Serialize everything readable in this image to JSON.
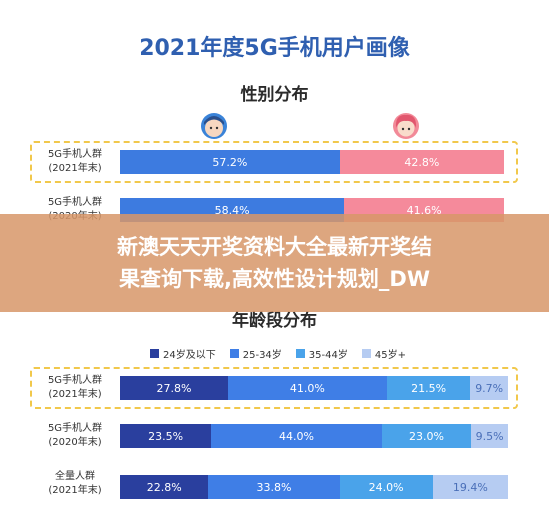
{
  "title": "2021年度5G手机用户画像",
  "banner": {
    "line1": "新澳天天开奖资料大全最新开奖结",
    "line2": "果查询下载,高效性设计规划_DW"
  },
  "gender_section": {
    "title": "性别分布",
    "rows": [
      {
        "label_line1": "5G手机人群",
        "label_line2": "(2021年末)",
        "male_label": "57.2%",
        "female_label": "42.8%"
      },
      {
        "label_line1": "5G手机人群",
        "label_line2": "(2020年末)",
        "male_label": "58.4%",
        "female_label": "41.6%"
      }
    ]
  },
  "age_section": {
    "title": "年龄段分布",
    "legend": [
      "24岁及以下",
      "25-34岁",
      "35-44岁",
      "45岁+"
    ],
    "rows": [
      {
        "label_line1": "5G手机人群",
        "label_line2": "(2021年末)",
        "labels": [
          "27.8%",
          "41.0%",
          "21.5%",
          "9.7%"
        ]
      },
      {
        "label_line1": "5G手机人群",
        "label_line2": "(2020年末)",
        "labels": [
          "23.5%",
          "44.0%",
          "23.0%",
          "9.5%"
        ]
      },
      {
        "label_line1": "全量人群",
        "label_line2": "(2021年末)",
        "labels": [
          "22.8%",
          "33.8%",
          "24.0%",
          "19.4%"
        ]
      }
    ]
  },
  "colors": {
    "male": "#3d7be0",
    "female": "#f58a9b",
    "age": [
      "#2a3f9e",
      "#3f7ee6",
      "#4aa3ea",
      "#b6ccf2"
    ]
  },
  "chart_data": [
    {
      "type": "bar",
      "title": "性别分布",
      "categories": [
        "5G手机人群(2021年末)",
        "5G手机人群(2020年末)"
      ],
      "series": [
        {
          "values": [
            57.2,
            58.4
          ]
        },
        {
          "values": [
            42.8,
            41.6
          ]
        }
      ]
    },
    {
      "type": "bar",
      "title": "年龄段分布",
      "categories": [
        "5G手机人群(2021年末)",
        "5G手机人群(2020年末)",
        "全量人群(2021年末)"
      ],
      "series": [
        {
          "name": "24岁及以下",
          "values": [
            27.8,
            23.5,
            22.8
          ]
        },
        {
          "name": "25-34岁",
          "values": [
            41.0,
            44.0,
            33.8
          ]
        },
        {
          "name": "35-44岁",
          "values": [
            21.5,
            23.0,
            24.0
          ]
        },
        {
          "name": "45岁+",
          "values": [
            9.7,
            9.5,
            19.4
          ]
        }
      ]
    }
  ]
}
